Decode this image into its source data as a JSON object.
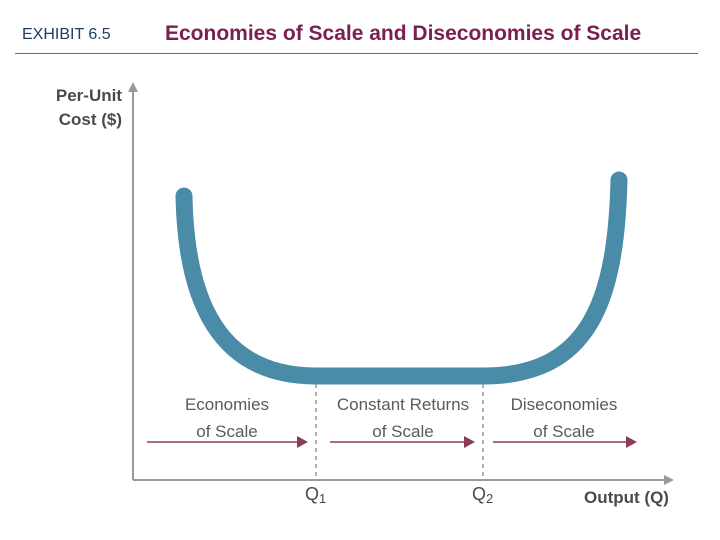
{
  "header": {
    "exhibit": "EXHIBIT 6.5",
    "title": "Economies of Scale and Diseconomies of Scale"
  },
  "colors": {
    "curve": "#4a8ba7",
    "arrows": "#8b3b5e",
    "axis": "#9a9a9a",
    "title": "#7a1f4f",
    "exhibit": "#1f3a68"
  },
  "chart_data": {
    "type": "line",
    "title": "Economies of Scale and Diseconomies of Scale",
    "ylabel_line1": "Per-Unit",
    "ylabel_line2": "Cost ($)",
    "xlabel": "Output (Q)",
    "q_ticks": [
      {
        "label": "Q",
        "sub": "1"
      },
      {
        "label": "Q",
        "sub": "2"
      }
    ],
    "regions": [
      {
        "line1": "Economies",
        "line2": "of Scale"
      },
      {
        "line1": "Constant Returns",
        "line2": "of Scale"
      },
      {
        "line1": "Diseconomies",
        "line2": "of Scale"
      }
    ],
    "curve_shape": "U-shaped: falling cost, flat between Q1 and Q2, rising cost",
    "grid": false,
    "tick_values_shown": false
  }
}
